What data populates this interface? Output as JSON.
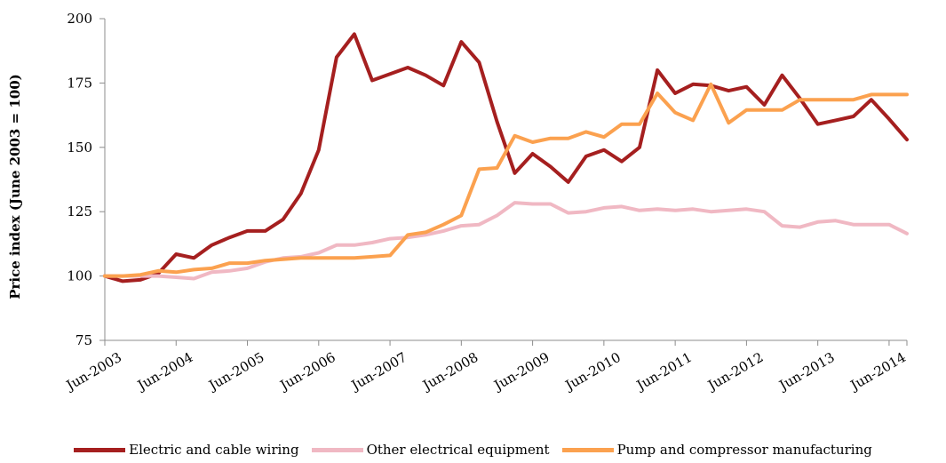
{
  "chart_data": {
    "type": "line",
    "ylabel": "Price index (June 2003 = 100)",
    "xlabel": "",
    "ylim": [
      75,
      200
    ],
    "yticks": [
      75,
      100,
      125,
      150,
      175,
      200
    ],
    "x_tick_labels": [
      "Jun-2003",
      "Jun-2004",
      "Jun-2005",
      "Jun-2006",
      "Jun-2007",
      "Jun-2008",
      "Jun-2009",
      "Jun-2010",
      "Jun-2011",
      "Jun-2012",
      "Jun-2013",
      "Jun-2014"
    ],
    "x": [
      "Jun-2003",
      "Sep-2003",
      "Dec-2003",
      "Mar-2004",
      "Jun-2004",
      "Sep-2004",
      "Dec-2004",
      "Mar-2005",
      "Jun-2005",
      "Sep-2005",
      "Dec-2005",
      "Mar-2006",
      "Jun-2006",
      "Sep-2006",
      "Dec-2006",
      "Mar-2007",
      "Jun-2007",
      "Sep-2007",
      "Dec-2007",
      "Mar-2008",
      "Jun-2008",
      "Sep-2008",
      "Dec-2008",
      "Mar-2009",
      "Jun-2009",
      "Sep-2009",
      "Dec-2009",
      "Mar-2010",
      "Jun-2010",
      "Sep-2010",
      "Dec-2010",
      "Mar-2011",
      "Jun-2011",
      "Sep-2011",
      "Dec-2011",
      "Mar-2012",
      "Jun-2012",
      "Sep-2012",
      "Dec-2012",
      "Mar-2013",
      "Jun-2013",
      "Sep-2013",
      "Dec-2013",
      "Mar-2014",
      "Jun-2014",
      "Sep-2014"
    ],
    "grid": false,
    "legend_position": "bottom",
    "series": [
      {
        "name": "Electric and cable wiring",
        "color": "#a51f1f",
        "values": [
          100,
          98,
          98.5,
          101,
          108.5,
          107,
          112,
          115,
          117.5,
          117.5,
          122,
          132,
          149,
          185,
          194,
          176,
          178.5,
          181,
          178,
          174,
          191,
          183,
          160,
          140,
          147.5,
          142.5,
          136.5,
          146.5,
          149,
          144.5,
          150,
          180,
          171,
          174.5,
          174,
          172,
          173.5,
          166.5,
          178,
          169,
          159,
          160.5,
          162,
          168.5,
          161,
          153
        ]
      },
      {
        "name": "Other electrical equipment",
        "color": "#f0b8c3",
        "values": [
          100,
          100,
          100,
          100,
          99.5,
          99,
          101.5,
          102,
          103,
          105.5,
          107,
          107.5,
          109,
          112,
          112,
          113,
          114.5,
          115,
          116,
          117.5,
          119.5,
          120,
          123.5,
          128.5,
          128,
          128,
          124.5,
          125,
          126.5,
          127,
          125.5,
          126,
          125.5,
          126,
          125,
          125.5,
          126,
          125,
          119.5,
          119,
          121,
          121.5,
          120,
          120,
          120,
          116.5
        ]
      },
      {
        "name": "Pump and compressor manufacturing",
        "color": "#fba14f",
        "values": [
          100,
          100,
          100.5,
          102,
          101.5,
          102.5,
          103,
          105,
          105,
          106,
          106.5,
          107,
          107,
          107,
          107,
          107.5,
          108,
          116,
          117,
          120,
          123.5,
          141.5,
          142,
          154.5,
          152,
          153.5,
          153.5,
          156,
          154,
          159,
          159,
          171,
          163.5,
          160.5,
          174.5,
          159.5,
          164.5,
          164.5,
          164.5,
          168.5,
          168.5,
          168.5,
          168.5,
          170.5,
          170.5,
          170.5
        ]
      }
    ]
  }
}
